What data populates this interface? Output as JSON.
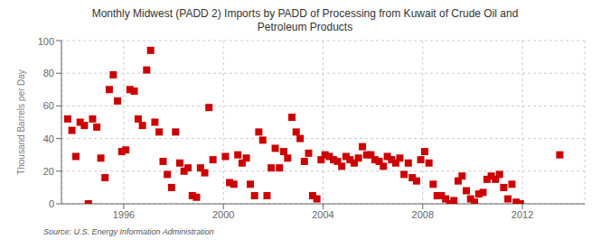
{
  "chart_data": {
    "type": "scatter",
    "title": "Monthly Midwest (PADD 2) Imports by PADD of Processing from Kuwait of Crude Oil and\nPetroleum Products",
    "ylabel": "Thousand Barrels per Day",
    "source": "Source: U.S. Energy Information Administration",
    "color": "#cc0000",
    "marker": "square",
    "grid": true,
    "xlim": [
      1993.5,
      2014.5
    ],
    "xticks": [
      1996,
      2000,
      2004,
      2008,
      2012
    ],
    "ylim": [
      0,
      100
    ],
    "yticks": [
      0,
      20,
      40,
      60,
      80,
      100
    ],
    "x": [
      1993.75,
      1993.92,
      1994.08,
      1994.25,
      1994.42,
      1994.58,
      1994.75,
      1994.92,
      1995.08,
      1995.25,
      1995.42,
      1995.58,
      1995.75,
      1995.92,
      1996.08,
      1996.25,
      1996.42,
      1996.58,
      1996.75,
      1996.92,
      1997.08,
      1997.25,
      1997.42,
      1997.58,
      1997.75,
      1997.92,
      1998.08,
      1998.25,
      1998.42,
      1998.58,
      1998.75,
      1998.92,
      1999.08,
      1999.25,
      1999.42,
      1999.58,
      2000.08,
      2000.25,
      2000.42,
      2000.58,
      2000.75,
      2000.92,
      2001.08,
      2001.25,
      2001.42,
      2001.58,
      2001.75,
      2001.92,
      2002.08,
      2002.25,
      2002.42,
      2002.58,
      2002.75,
      2002.92,
      2003.08,
      2003.25,
      2003.42,
      2003.58,
      2003.75,
      2003.92,
      2004.08,
      2004.25,
      2004.42,
      2004.58,
      2004.75,
      2004.92,
      2005.08,
      2005.25,
      2005.42,
      2005.58,
      2005.75,
      2005.92,
      2006.08,
      2006.25,
      2006.42,
      2006.58,
      2006.75,
      2006.92,
      2007.08,
      2007.25,
      2007.42,
      2007.58,
      2007.75,
      2007.92,
      2008.08,
      2008.25,
      2008.42,
      2008.58,
      2008.75,
      2008.92,
      2009.08,
      2009.25,
      2009.42,
      2009.58,
      2009.75,
      2009.92,
      2010.08,
      2010.25,
      2010.42,
      2010.58,
      2010.75,
      2010.92,
      2011.08,
      2011.25,
      2011.42,
      2011.58,
      2011.75,
      2011.92,
      2013.5
    ],
    "values": [
      52,
      45,
      29,
      50,
      48,
      0,
      52,
      47,
      28,
      16,
      70,
      79,
      63,
      32,
      33,
      70,
      69,
      52,
      48,
      82,
      94,
      50,
      44,
      26,
      18,
      10,
      44,
      25,
      20,
      22,
      5,
      4,
      22,
      19,
      59,
      27,
      29,
      13,
      12,
      30,
      25,
      28,
      12,
      5,
      44,
      39,
      5,
      22,
      34,
      22,
      32,
      28,
      53,
      44,
      40,
      26,
      31,
      5,
      3,
      27,
      30,
      29,
      27,
      26,
      23,
      29,
      27,
      25,
      28,
      35,
      30,
      30,
      27,
      26,
      23,
      29,
      27,
      25,
      28,
      18,
      25,
      16,
      14,
      27,
      32,
      25,
      12,
      5,
      5,
      3,
      0,
      2,
      14,
      17,
      8,
      3,
      1,
      6,
      7,
      15,
      17,
      15,
      18,
      10,
      3,
      12,
      1,
      0,
      30
    ]
  }
}
